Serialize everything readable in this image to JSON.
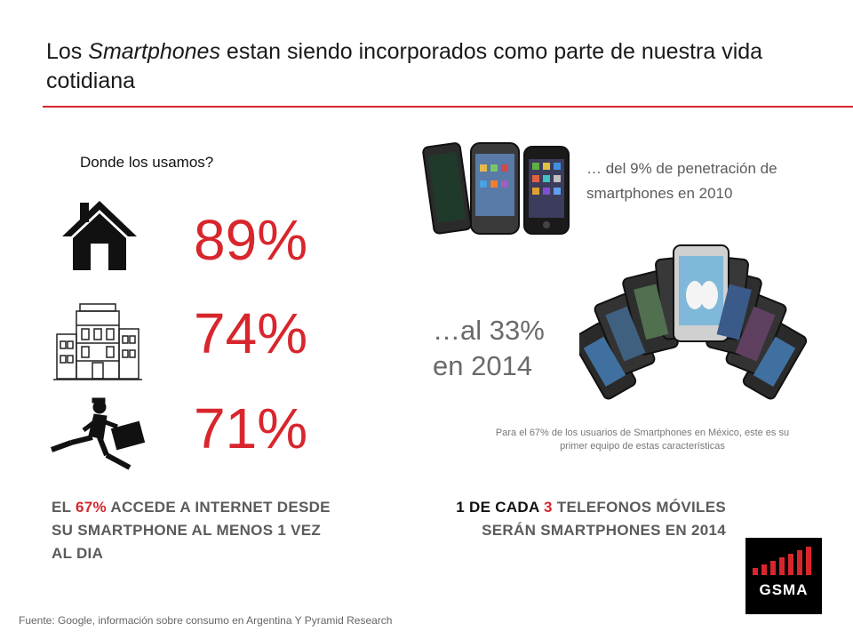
{
  "title": {
    "part1": "Los ",
    "part2_italic": "Smartphones",
    "part3": " estan siendo incorporados como parte de nuestra vida cotidiana"
  },
  "left": {
    "question": "Donde los usamos?",
    "stats": [
      {
        "value": "89%",
        "icon": "house-icon"
      },
      {
        "value": "74%",
        "icon": "building-icon"
      },
      {
        "value": "71%",
        "icon": "running-businessman-icon"
      }
    ],
    "bottom_text": {
      "p1": "EL ",
      "p2_red": "67%",
      "p3": " ACCEDE A INTERNET DESDE SU SMARTPHONE AL MENOS 1 VEZ AL DIA"
    }
  },
  "right": {
    "penetration_2010": "… del 9% de penetración de smartphones en 2010",
    "penetration_2014": "…al 33% en 2014",
    "note": "Para el 67% de los usuarios de Smartphones en México, este es su primer equipo de estas características",
    "bottom_text": {
      "p1_dark": "1 DE CADA ",
      "p2_red": "3",
      "p3": " TELEFONOS MÓVILES SERÁN SMARTPHONES EN 2014"
    }
  },
  "source": "Fuente: Google, información sobre consumo en Argentina Y Pyramid Research",
  "logo": {
    "text": "GSMA"
  },
  "colors": {
    "accent": "#d8262d",
    "text_gray": "#5b5b5b"
  }
}
